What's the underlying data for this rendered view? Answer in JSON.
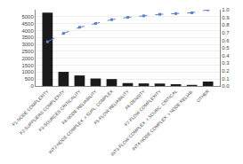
{
  "chart_data": {
    "type": "bar",
    "categories": [
      "F1-NODE COMPLEXITY",
      "F2-SUPPLIERS COMPLEXITY",
      "F3-SOURCES CRITICALITY",
      "F4-NODE RELIABILITY",
      "INT2-NODE COMPLEX. x SUPL. COMPLEX",
      "F5-FLOW RELIABILITY",
      "F6-DENSITY",
      "F7-FLOW COMPLEXITY",
      "INT3-FLOW COMPLEX. x SOURC. CRITICAL",
      "INT4-NODE COMPLEX. x NODE RELIAB.",
      "OTHER"
    ],
    "series": [
      {
        "type": "bar",
        "color": "#1a1a1a",
        "values": [
          5300,
          1020,
          760,
          540,
          500,
          210,
          185,
          175,
          130,
          80,
          320
        ]
      },
      {
        "type": "line",
        "axis": "y2",
        "color": "#5b7fc4",
        "marker": "square",
        "line_style": "dashed",
        "values": [
          0.58,
          0.69,
          0.77,
          0.82,
          0.87,
          0.9,
          0.92,
          0.94,
          0.95,
          0.96,
          1.0
        ]
      }
    ],
    "ylim": [
      0,
      5500
    ],
    "yticks": [
      0,
      500,
      1000,
      1500,
      2000,
      2500,
      3000,
      3500,
      4000,
      4500,
      5000
    ],
    "y2lim": [
      0,
      1.0
    ],
    "y2ticks": [
      {
        "value": 0,
        "label": "0.0"
      },
      0.1,
      0.2,
      0.3,
      0.4,
      0.5,
      0.6,
      0.7,
      0.8,
      0.9,
      {
        "value": 1,
        "label": "1.0"
      }
    ],
    "grid": true
  }
}
